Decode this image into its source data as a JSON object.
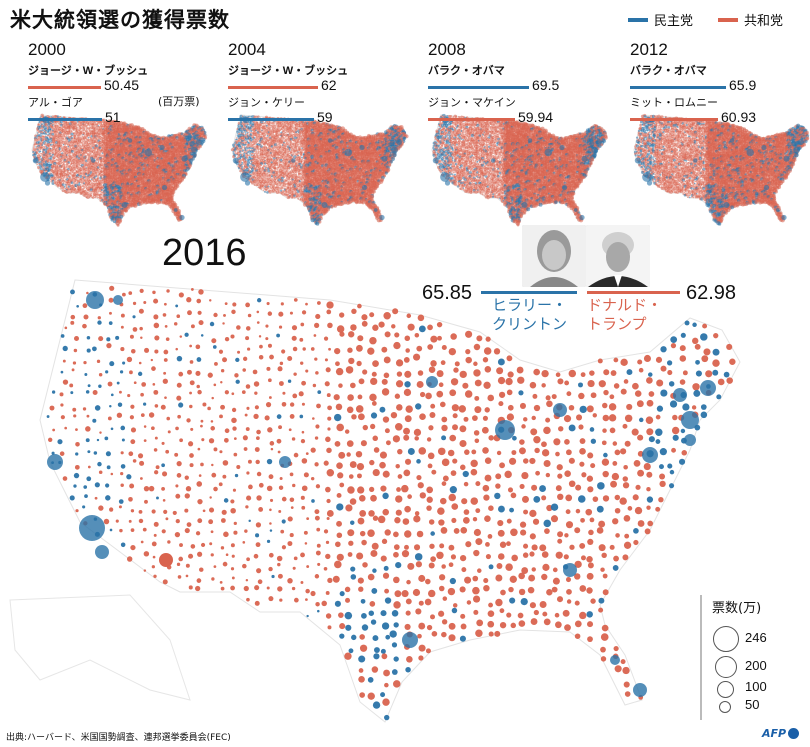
{
  "title": "米大統領選の獲得票数",
  "legend": {
    "dem": {
      "label": "民主党",
      "color": "#2a73a8"
    },
    "rep": {
      "label": "共和党",
      "color": "#d9634e"
    }
  },
  "unit_label": "(百万票)",
  "past_elections": [
    {
      "year": "2000",
      "first": {
        "name": "ジョージ・W・ブッシュ",
        "value": "50.45",
        "party": "rep"
      },
      "second": {
        "name": "アル・ゴア",
        "value": "51",
        "party": "dem"
      }
    },
    {
      "year": "2004",
      "first": {
        "name": "ジョージ・W・ブッシュ",
        "value": "62",
        "party": "rep"
      },
      "second": {
        "name": "ジョン・ケリー",
        "value": "59",
        "party": "dem"
      }
    },
    {
      "year": "2008",
      "first": {
        "name": "バラク・オバマ",
        "value": "69.5",
        "party": "dem"
      },
      "second": {
        "name": "ジョン・マケイン",
        "value": "59.94",
        "party": "rep"
      }
    },
    {
      "year": "2012",
      "first": {
        "name": "バラク・オバマ",
        "value": "65.9",
        "party": "dem"
      },
      "second": {
        "name": "ミット・ロムニー",
        "value": "60.93",
        "party": "rep"
      }
    }
  ],
  "election_2016": {
    "year": "2016",
    "clinton": {
      "name_line1": "ヒラリー・",
      "name_line2": "クリントン",
      "value": "65.85"
    },
    "trump": {
      "name_line1": "ドナルド・",
      "name_line2": "トランプ",
      "value": "62.98"
    }
  },
  "size_legend": {
    "title": "票数(万)",
    "items": [
      "246",
      "200",
      "100",
      "50"
    ]
  },
  "source": "出典:ハーバード、米国国勢調査、連邦選挙委員会(FEC)",
  "credit": "AFP"
}
